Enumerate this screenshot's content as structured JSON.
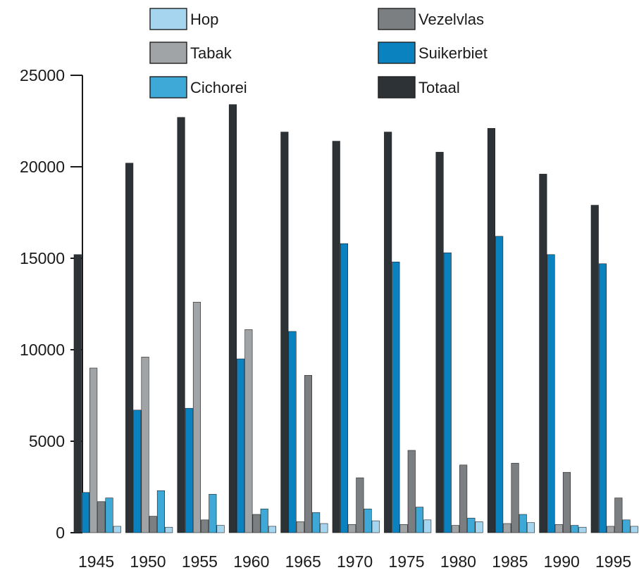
{
  "chart_data": {
    "type": "bar",
    "title": "",
    "xlabel": "",
    "ylabel": "",
    "ylim": [
      0,
      25000
    ],
    "yticks": [
      0,
      5000,
      10000,
      15000,
      20000,
      25000
    ],
    "grid": false,
    "legend_position": "top",
    "categories": [
      "1945",
      "1950",
      "1955",
      "1960",
      "1965",
      "1970",
      "1975",
      "1980",
      "1985",
      "1990",
      "1995"
    ],
    "series": [
      {
        "name": "Totaal",
        "color": "#2c3236",
        "values": [
          15200,
          20200,
          22700,
          23400,
          21900,
          21400,
          21900,
          20800,
          22100,
          19600,
          17900
        ]
      },
      {
        "name": "Suikerbiet",
        "color": "#0b82c0",
        "values": [
          2200,
          6700,
          6800,
          9500,
          11000,
          15800,
          14800,
          15300,
          16200,
          15200,
          14700
        ]
      },
      {
        "name": "Tabak",
        "color": "#a1a4a6",
        "values": [
          9000,
          9600,
          12600,
          11100,
          600,
          450,
          450,
          400,
          500,
          450,
          350
        ]
      },
      {
        "name": "Vezelvlas",
        "color": "#7b7f82",
        "values": [
          1700,
          900,
          700,
          1000,
          8600,
          3000,
          4500,
          3700,
          3800,
          3300,
          1900
        ]
      },
      {
        "name": "Cichorei",
        "color": "#3ea9d6",
        "values": [
          1900,
          2300,
          2100,
          1300,
          1100,
          1300,
          1400,
          800,
          1000,
          400,
          700
        ]
      },
      {
        "name": "Hop",
        "color": "#a6d6ef",
        "values": [
          350,
          300,
          400,
          350,
          500,
          650,
          700,
          600,
          550,
          300,
          350
        ]
      }
    ],
    "legend": [
      {
        "name": "Hop",
        "color": "#a6d6ef"
      },
      {
        "name": "Tabak",
        "color": "#a1a4a6"
      },
      {
        "name": "Cichorei",
        "color": "#3ea9d6"
      },
      {
        "name": "Vezelvlas",
        "color": "#7b7f82"
      },
      {
        "name": "Suikerbiet",
        "color": "#0b82c0"
      },
      {
        "name": "Totaal",
        "color": "#2c3236"
      }
    ]
  }
}
